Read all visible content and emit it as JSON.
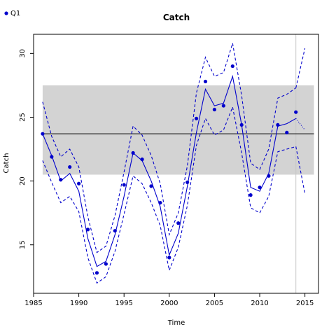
{
  "chart_data": {
    "type": "line",
    "title": "Catch",
    "xlabel": "Time",
    "ylabel": "Catch",
    "xlim": [
      1985,
      2016.5
    ],
    "ylim": [
      11.2,
      31.5
    ],
    "xticks": [
      1985,
      1990,
      1995,
      2000,
      2005,
      2010,
      2015
    ],
    "yticks": [
      15,
      20,
      25,
      30
    ],
    "grid": false,
    "legend": {
      "position": "top-left",
      "entries": [
        "Q1"
      ]
    },
    "colors": {
      "series": "#0000cc",
      "band": "#d3d3d3",
      "reference": "#000000",
      "vline": "#c8c8c8"
    },
    "reference_band": {
      "x": [
        1986,
        2016
      ],
      "y": [
        20.5,
        27.5
      ]
    },
    "reference_line": {
      "y": 23.7,
      "x": [
        1986,
        2016
      ]
    },
    "vertical_line": {
      "x": 2014
    },
    "series": [
      {
        "name": "Q1",
        "kind": "points",
        "x": [
          1986,
          1987,
          1988,
          1989,
          1990,
          1991,
          1992,
          1993,
          1994,
          1995,
          1996,
          1997,
          1998,
          1999,
          2000,
          2001,
          2002,
          2003,
          2004,
          2005,
          2006,
          2007,
          2008,
          2009,
          2010,
          2011,
          2012,
          2013,
          2014
        ],
        "values": [
          23.7,
          21.9,
          20.1,
          21.1,
          19.8,
          16.2,
          12.8,
          13.5,
          16.1,
          19.7,
          22.2,
          21.7,
          19.6,
          18.3,
          14.0,
          16.7,
          19.9,
          24.9,
          27.8,
          25.6,
          25.9,
          29.0,
          24.4,
          18.9,
          19.5,
          20.4,
          24.4,
          23.8,
          25.4
        ]
      },
      {
        "kind": "fit",
        "x": [
          1986,
          1987,
          1988,
          1989,
          1990,
          1991,
          1992,
          1993,
          1994,
          1995,
          1996,
          1997,
          1998,
          1999,
          2000,
          2001,
          2002,
          2003,
          2004,
          2005,
          2006,
          2007,
          2008,
          2009,
          2010,
          2011,
          2012,
          2013,
          2014
        ],
        "values": [
          23.7,
          22.0,
          20.0,
          20.6,
          19.2,
          15.5,
          13.3,
          13.7,
          15.8,
          18.8,
          22.2,
          21.6,
          20.0,
          18.0,
          14.2,
          15.9,
          19.6,
          23.8,
          27.2,
          25.9,
          26.1,
          28.2,
          24.4,
          19.5,
          19.2,
          20.6,
          24.3,
          24.5,
          24.9
        ]
      },
      {
        "kind": "upper",
        "x": [
          1986,
          1987,
          1988,
          1989,
          1990,
          1991,
          1992,
          1993,
          1994,
          1995,
          1996,
          1997,
          1998,
          1999,
          2000,
          2001,
          2002,
          2003,
          2004,
          2005,
          2006,
          2007,
          2008,
          2009,
          2010,
          2011,
          2012,
          2013,
          2014
        ],
        "values": [
          26.2,
          23.5,
          21.9,
          22.5,
          21.1,
          17.2,
          14.4,
          14.9,
          17.3,
          20.7,
          24.3,
          23.6,
          22.0,
          19.8,
          15.8,
          17.5,
          21.2,
          26.9,
          29.7,
          28.2,
          28.5,
          30.8,
          26.7,
          21.4,
          20.9,
          22.5,
          26.5,
          26.8,
          27.3
        ]
      },
      {
        "kind": "lower",
        "x": [
          1986,
          1987,
          1988,
          1989,
          1990,
          1991,
          1992,
          1993,
          1994,
          1995,
          1996,
          1997,
          1998,
          1999,
          2000,
          2001,
          2002,
          2003,
          2004,
          2005,
          2006,
          2007,
          2008,
          2009,
          2010,
          2011,
          2012,
          2013,
          2014
        ],
        "values": [
          21.6,
          19.9,
          18.3,
          18.8,
          17.6,
          14.0,
          12.0,
          12.5,
          14.5,
          17.4,
          20.4,
          19.8,
          18.3,
          16.5,
          13.0,
          14.8,
          18.1,
          22.8,
          24.9,
          23.6,
          24.0,
          25.8,
          22.2,
          17.9,
          17.5,
          18.8,
          22.3,
          22.5,
          22.7
        ]
      },
      {
        "kind": "projection-fit",
        "x": [
          2014,
          2015
        ],
        "values": [
          24.9,
          24.0
        ]
      },
      {
        "kind": "projection-upper",
        "x": [
          2014,
          2015
        ],
        "values": [
          27.3,
          30.4
        ]
      },
      {
        "kind": "projection-lower",
        "x": [
          2014,
          2015
        ],
        "values": [
          22.7,
          19.0
        ]
      }
    ]
  }
}
